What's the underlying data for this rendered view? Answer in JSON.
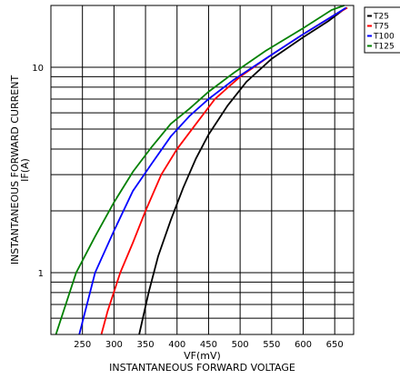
{
  "chart_data": {
    "type": "line",
    "xlabel": "VF(mV)",
    "xlabel2": "INSTANTANEOUS FORWARD VOLTAGE",
    "ylabel": "INSTANTANEOUS FORWARD CURRENT",
    "ylabel2": "IF(A)",
    "xlim": [
      200,
      680
    ],
    "ylim": [
      0.5,
      20
    ],
    "yscale": "log",
    "grid": true,
    "legend_position": "right",
    "x_ticks": [
      250,
      300,
      350,
      400,
      450,
      500,
      550,
      600,
      650
    ],
    "y_tick_labels": [
      {
        "value": 1,
        "label": "1"
      },
      {
        "value": 10,
        "label": "10"
      }
    ],
    "series": [
      {
        "name": "T25",
        "color": "#000000",
        "x": [
          340,
          355,
          370,
          390,
          410,
          430,
          450,
          480,
          510,
          550,
          600,
          640,
          668
        ],
        "y": [
          0.5,
          0.8,
          1.2,
          1.8,
          2.6,
          3.6,
          4.7,
          6.5,
          8.5,
          11.0,
          14.0,
          16.8,
          19.5
        ]
      },
      {
        "name": "T75",
        "color": "#ff0000",
        "x": [
          280,
          290,
          310,
          330,
          350,
          375,
          400,
          430,
          460,
          500,
          550,
          600,
          650,
          670
        ],
        "y": [
          0.5,
          0.65,
          1.0,
          1.4,
          2.0,
          3.0,
          4.0,
          5.3,
          7.0,
          9.0,
          11.5,
          14.5,
          18.0,
          19.5
        ]
      },
      {
        "name": "T100",
        "color": "#0000ff",
        "x": [
          245,
          270,
          300,
          330,
          360,
          390,
          420,
          450,
          490,
          540,
          600,
          650,
          668
        ],
        "y": [
          0.5,
          1.0,
          1.6,
          2.5,
          3.4,
          4.6,
          5.8,
          7.0,
          8.7,
          11.0,
          14.5,
          18.0,
          19.5
        ]
      },
      {
        "name": "T125",
        "color": "#008000",
        "x": [
          208,
          240,
          270,
          300,
          330,
          360,
          390,
          420,
          450,
          490,
          540,
          600,
          645,
          665
        ],
        "y": [
          0.5,
          1.0,
          1.5,
          2.2,
          3.1,
          4.1,
          5.3,
          6.3,
          7.6,
          9.4,
          12.0,
          15.5,
          19.0,
          20.0
        ]
      }
    ]
  }
}
